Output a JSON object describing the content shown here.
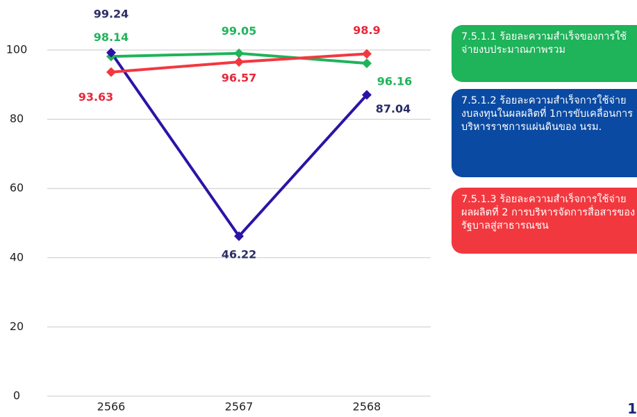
{
  "chart_data": {
    "type": "line",
    "categories": [
      "2566",
      "2567",
      "2568"
    ],
    "series": [
      {
        "name": "7.5.1.1 ร้อยละความสำเร็จของการใช้จ่ายงบประมาณภาพรวม",
        "color": "#1fb35a",
        "label_color": "#1fb35a",
        "values": [
          98.14,
          99.05,
          96.16
        ]
      },
      {
        "name": "7.5.1.2 ร้อยละความสำเร็จการใช้จ่ายงบลงทุนในผลผลิตที่ 1การขับเคลื่อนการบริหารราชการแผ่นดินของ นรม.",
        "color": "#2a14a6",
        "label_color": "#2b2e66",
        "legend_color": "#0b4aa3",
        "values": [
          99.24,
          46.22,
          87.04
        ]
      },
      {
        "name": "7.5.1.3 ร้อยละความสำเร็จการใช้จ่ายผลผลิตที่ 2 การบริหารจัดการสื่อสารของรัฐบาลสู่สาธารณชน",
        "color": "#f2383f",
        "label_color": "#e8283a",
        "values": [
          93.63,
          96.57,
          98.9
        ]
      }
    ],
    "ylim": [
      0,
      100
    ],
    "yticks": [
      0,
      20,
      40,
      60,
      80,
      100
    ],
    "grid": true
  },
  "page_number": "1"
}
